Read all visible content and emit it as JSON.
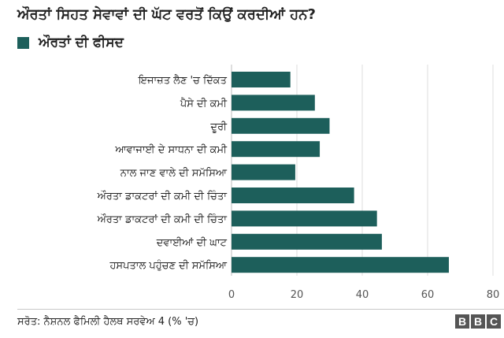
{
  "chart_data": {
    "type": "bar",
    "orientation": "horizontal",
    "title": "ਔਰਤਾਂ ਸਿਹਤ ਸੇਵਾਵਾਂ ਦੀ ਘੱਟ ਵਰਤੋਂ ਕਿਉਂ ਕਰਦੀਆਂ ਹਨ?",
    "legend": [
      "ਔਰਤਾਂ ਦੀ ਫੀਸਦ"
    ],
    "categories": [
      "ਇਜਾਜ਼ਤ ਲੈਣ 'ਚ ਦਿੱਕਤ",
      "ਪੈਸੇ ਦੀ ਕਮੀ",
      "ਦੂਰੀ",
      "ਆਵਾਜਾਈ ਦੇ ਸਾਧਨਾ ਦੀ ਕਮੀ",
      "ਨਾਲ ਜਾਣ ਵਾਲੇ ਦੀ ਸਮੱਸਿਆ",
      "ਔਰਤਾ ਡਾਕਟਰਾਂ ਦੀ ਕਮੀ ਦੀ ਚਿੰਤਾ",
      "ਔਰਤਾ ਡਾਕਟਰਾਂ ਦੀ ਕਮੀ ਦੀ ਚਿੰਤਾ",
      "ਦਵਾਈਆਂ ਦੀ ਘਾਟ",
      "ਹਸਪਤਾਲ ਪਹੁੰਚਣ ਦੀ ਸਮੱਸਿਆ"
    ],
    "values": [
      18,
      25.5,
      30,
      27,
      19.5,
      37.5,
      44.5,
      46,
      66.5
    ],
    "xlim": [
      0,
      80
    ],
    "xticks": [
      0,
      20,
      40,
      60,
      80
    ],
    "grid": true,
    "bar_color": "#1d5f5b"
  },
  "footer": {
    "source": "ਸਰੋਤ: ਨੈਸ਼ਨਲ ਫੈਮਿਲੀ ਹੈਲਥ ਸਰਵੇਅ 4 (% 'ਚ)",
    "logo": [
      "B",
      "B",
      "C"
    ]
  }
}
